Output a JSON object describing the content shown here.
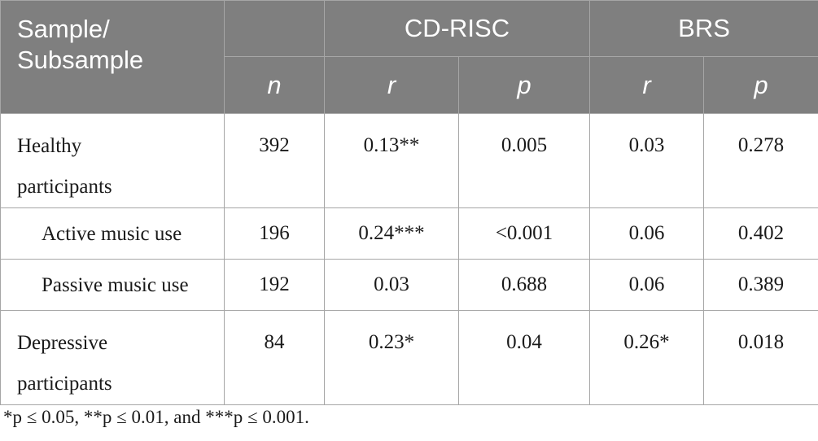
{
  "table": {
    "header": {
      "sample_label": "Sample/\nSubsample",
      "group_cdrisc": "CD-RISC",
      "group_brs": "BRS",
      "sub_n": "n",
      "sub_r1": "r",
      "sub_p1": "p",
      "sub_r2": "r",
      "sub_p2": "p"
    },
    "rows": [
      {
        "label": "Healthy\nparticipants",
        "n": "392",
        "cd_r": "0.13**",
        "cd_p": "0.005",
        "brs_r": "0.03",
        "brs_p": "0.278"
      },
      {
        "label": "Active music use",
        "n": "196",
        "cd_r": "0.24***",
        "cd_p": "<0.001",
        "brs_r": "0.06",
        "brs_p": "0.402"
      },
      {
        "label": "Passive music use",
        "n": "192",
        "cd_r": "0.03",
        "cd_p": "0.688",
        "brs_r": "0.06",
        "brs_p": "0.389"
      },
      {
        "label": "Depressive\nparticipants",
        "n": "84",
        "cd_r": "0.23*",
        "cd_p": "0.04",
        "brs_r": "0.26*",
        "brs_p": "0.018"
      }
    ]
  },
  "footnote": "*p ≤ 0.05, **p ≤ 0.01, and ***p ≤ 0.001."
}
